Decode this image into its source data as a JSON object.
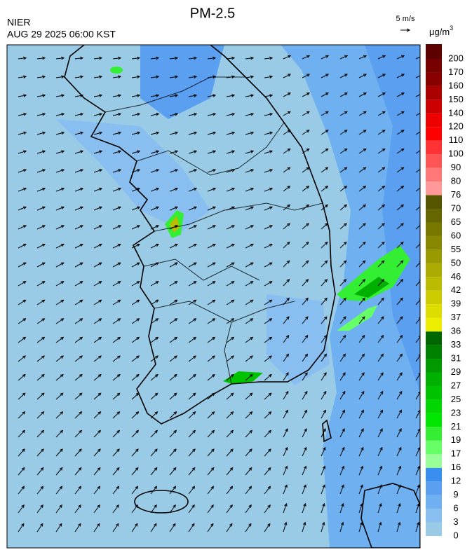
{
  "title": "PM-2.5",
  "agency": "NIER",
  "timestamp": "AUG 29 2025 06:00 KST",
  "wind_scale": "5 m/s",
  "colorbar": {
    "unit": "μg/m",
    "unit_exponent": "3",
    "levels": [
      0,
      3,
      6,
      9,
      12,
      16,
      17,
      19,
      21,
      23,
      25,
      27,
      29,
      31,
      33,
      36,
      37,
      39,
      42,
      46,
      50,
      55,
      60,
      65,
      70,
      76,
      80,
      90,
      100,
      110,
      120,
      140,
      150,
      160,
      170,
      200
    ],
    "colors": [
      "#99cbe6",
      "#88bff0",
      "#6fb0f0",
      "#5a9ff0",
      "#3a8ef0",
      "#99ff99",
      "#66ff66",
      "#33ee33",
      "#00e600",
      "#00d600",
      "#00c300",
      "#00b000",
      "#009900",
      "#008000",
      "#006600",
      "#eeee00",
      "#dddd00",
      "#cccc00",
      "#bbbb00",
      "#aaaa00",
      "#999900",
      "#888800",
      "#777700",
      "#666600",
      "#555500",
      "#ff9999",
      "#ff7777",
      "#ff5555",
      "#ff3333",
      "#ff0000",
      "#ee0000",
      "#cc0000",
      "#aa0000",
      "#880000",
      "#770000",
      "#5c0000"
    ]
  }
}
